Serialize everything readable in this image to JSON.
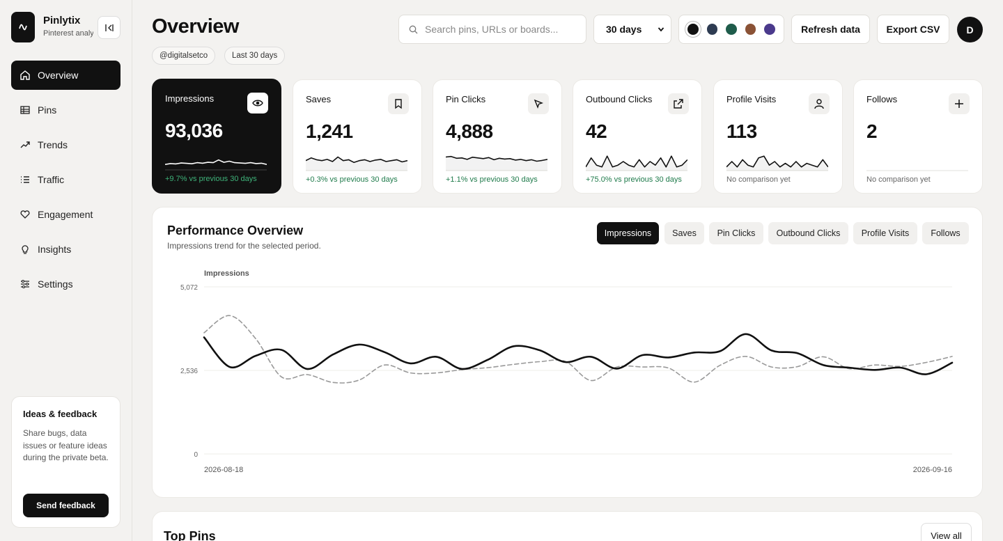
{
  "app": {
    "name": "Pinlytix",
    "subtitle": "Pinterest analytics"
  },
  "sidebar": {
    "items": [
      {
        "label": "Overview",
        "icon": "home-icon",
        "active": true
      },
      {
        "label": "Pins",
        "icon": "grid-icon"
      },
      {
        "label": "Trends",
        "icon": "trend-icon"
      },
      {
        "label": "Traffic",
        "icon": "list-icon"
      },
      {
        "label": "Engagement",
        "icon": "heart-icon"
      },
      {
        "label": "Insights",
        "icon": "lightbulb-icon"
      },
      {
        "label": "Settings",
        "icon": "sliders-icon"
      }
    ],
    "feedback": {
      "title": "Ideas & feedback",
      "text": "Share bugs, data issues or feature ideas during the private beta.",
      "button": "Send feedback"
    }
  },
  "header": {
    "title": "Overview",
    "chips": [
      "@digitalsetco",
      "Last 30 days"
    ],
    "search_placeholder": "Search pins, URLs or boards...",
    "range": "30 days",
    "swatches": [
      "#111111",
      "#2e3c52",
      "#1f5c4b",
      "#8a5236",
      "#4b3a8c"
    ],
    "refresh": "Refresh data",
    "export": "Export CSV",
    "avatar": "D"
  },
  "metrics": [
    {
      "label": "Impressions",
      "value": "93,036",
      "delta": "+9.7% vs previous 30 days",
      "icon": "eye-icon",
      "spark": [
        0.3,
        0.35,
        0.33,
        0.38,
        0.36,
        0.34,
        0.4,
        0.37,
        0.42,
        0.4,
        0.55,
        0.42,
        0.48,
        0.4,
        0.38,
        0.36,
        0.4,
        0.35,
        0.37,
        0.3
      ]
    },
    {
      "label": "Saves",
      "value": "1,241",
      "delta": "+0.3% vs previous 30 days",
      "icon": "bookmark-icon",
      "spark": [
        0.55,
        0.7,
        0.6,
        0.55,
        0.62,
        0.5,
        0.75,
        0.55,
        0.6,
        0.45,
        0.55,
        0.6,
        0.5,
        0.58,
        0.62,
        0.5,
        0.55,
        0.6,
        0.48,
        0.55
      ]
    },
    {
      "label": "Pin Clicks",
      "value": "4,888",
      "delta": "+1.1% vs previous 30 days",
      "icon": "cursor-icon",
      "spark": [
        0.75,
        0.78,
        0.68,
        0.7,
        0.62,
        0.74,
        0.7,
        0.66,
        0.72,
        0.6,
        0.68,
        0.64,
        0.66,
        0.58,
        0.62,
        0.55,
        0.6,
        0.52,
        0.56,
        0.62
      ]
    },
    {
      "label": "Outbound Clicks",
      "value": "42",
      "delta": "+75.0% vs previous 30 days",
      "icon": "external-link-icon",
      "spark": [
        0.2,
        0.7,
        0.3,
        0.2,
        0.8,
        0.2,
        0.3,
        0.5,
        0.3,
        0.2,
        0.6,
        0.2,
        0.5,
        0.3,
        0.7,
        0.2,
        0.8,
        0.2,
        0.3,
        0.6
      ]
    },
    {
      "label": "Profile Visits",
      "value": "113",
      "delta": "No comparison yet",
      "icon": "user-icon",
      "spark": [
        0.2,
        0.5,
        0.2,
        0.6,
        0.3,
        0.2,
        0.7,
        0.8,
        0.3,
        0.5,
        0.2,
        0.4,
        0.2,
        0.5,
        0.2,
        0.4,
        0.3,
        0.2,
        0.6,
        0.2
      ]
    },
    {
      "label": "Follows",
      "value": "2",
      "delta": "No comparison yet",
      "icon": "plus-icon",
      "spark": []
    }
  ],
  "performance": {
    "title": "Performance Overview",
    "subtitle": "Impressions trend for the selected period.",
    "tabs": [
      "Impressions",
      "Saves",
      "Pin Clicks",
      "Outbound Clicks",
      "Profile Visits",
      "Follows"
    ],
    "active_tab": 0
  },
  "chart_data": {
    "type": "line",
    "ylabel": "Impressions",
    "ylim": [
      0,
      5072
    ],
    "yticks": [
      "5,072",
      "2,536",
      "0"
    ],
    "x_labels": [
      "2026-08-18",
      "2026-09-16"
    ],
    "series": [
      {
        "style": "solid",
        "color": "#111111",
        "values": [
          3540,
          2640,
          2980,
          3160,
          2580,
          3020,
          3320,
          3090,
          2750,
          2950,
          2580,
          2860,
          3270,
          3150,
          2790,
          2950,
          2590,
          3000,
          2930,
          3080,
          3120,
          3640,
          3140,
          3060,
          2700,
          2620,
          2550,
          2620,
          2420,
          2770
        ]
      },
      {
        "style": "dashed",
        "color": "#999999",
        "values": [
          3680,
          4200,
          3500,
          2340,
          2410,
          2170,
          2240,
          2700,
          2460,
          2460,
          2560,
          2620,
          2720,
          2800,
          2810,
          2230,
          2640,
          2640,
          2610,
          2180,
          2690,
          2960,
          2640,
          2650,
          2950,
          2590,
          2700,
          2660,
          2780,
          2960
        ]
      }
    ]
  },
  "top_pins": {
    "title": "Top Pins",
    "view_all": "View all"
  }
}
